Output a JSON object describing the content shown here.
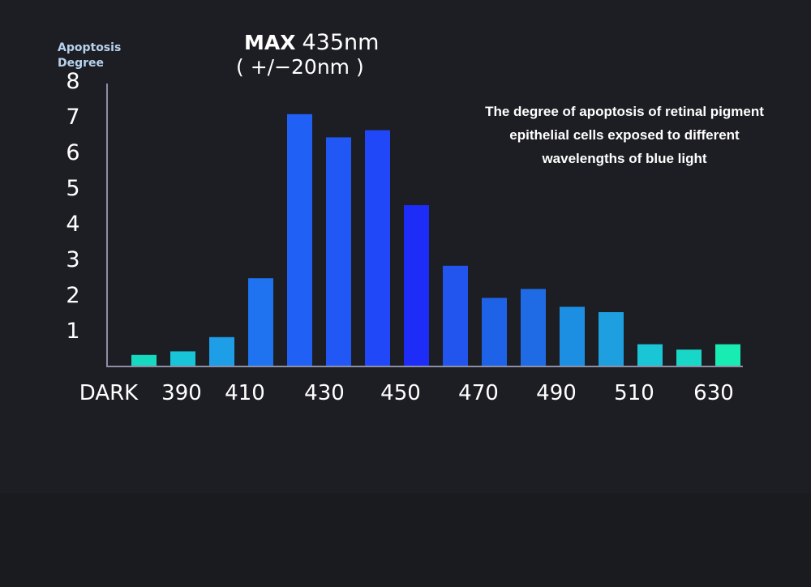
{
  "chart_data": {
    "type": "bar",
    "title": "",
    "ylabel": [
      "Apoptosis",
      "Degree"
    ],
    "xlabel": "",
    "headline": {
      "max_label": "MAX",
      "max_value": "435nm",
      "range": "( +/−20nm )"
    },
    "annotation": [
      "The degree of apoptosis of retinal pigment",
      "epithelial cells exposed to different",
      "wavelengths of blue light"
    ],
    "ylim": [
      0,
      8
    ],
    "yticks": [
      "1",
      "2",
      "3",
      "4",
      "5",
      "6",
      "7",
      "8"
    ],
    "xtick_labels": [
      "DARK",
      "390",
      "410",
      "430",
      "450",
      "470",
      "490",
      "510",
      "630"
    ],
    "grid": false,
    "values": [
      0.3,
      0.4,
      0.8,
      2.45,
      7.05,
      6.4,
      6.6,
      4.5,
      2.8,
      1.9,
      2.15,
      1.65,
      1.5,
      0.6,
      0.45,
      0.6
    ],
    "colors": [
      "#17d9c0",
      "#17c4d8",
      "#1f9ee8",
      "#1f72f0",
      "#2160f5",
      "#2158f5",
      "#2048f8",
      "#1d2cf6",
      "#2254ee",
      "#1e62e8",
      "#1f6be6",
      "#1d8fe3",
      "#1d9fe0",
      "#1ac6d6",
      "#19d7c8",
      "#19ecb3"
    ]
  }
}
